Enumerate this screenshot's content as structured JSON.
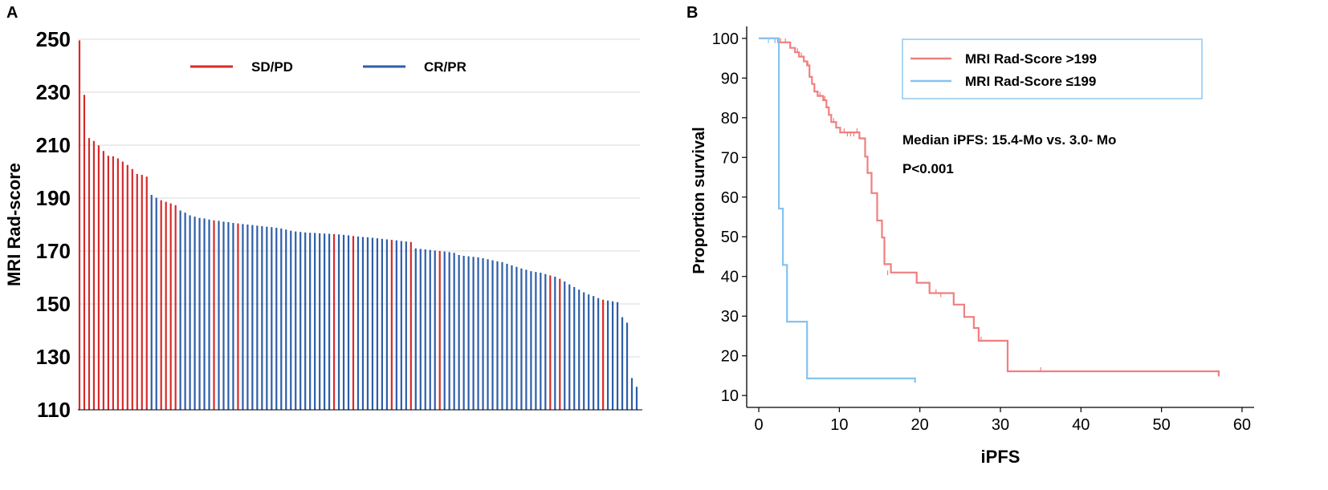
{
  "panels": {
    "a_label": "A",
    "b_label": "B"
  },
  "colors": {
    "sdpd": "#d62b2b",
    "crpr": "#2e5ea8",
    "high": "#f07f7f",
    "low": "#86c3ef",
    "grid": "#d9d9d9"
  },
  "chart_data": [
    {
      "type": "bar",
      "title": "",
      "xlabel": "",
      "ylabel": "MRI Rad-score",
      "ylim": [
        110,
        250
      ],
      "yticks": [
        110,
        130,
        150,
        170,
        190,
        210,
        230,
        250
      ],
      "legend": [
        "SD/PD",
        "CR/PR"
      ],
      "series": [
        {
          "name": "SD/PD",
          "color": "#d62b2b"
        },
        {
          "name": "CR/PR",
          "color": "#2e5ea8"
        }
      ],
      "values": [
        249.6,
        229.0,
        212.7,
        211.6,
        209.9,
        207.8,
        206.0,
        205.8,
        205.0,
        203.8,
        202.5,
        201.0,
        199.1,
        198.8,
        198.1,
        191.2,
        190.1,
        189.2,
        188.6,
        188.0,
        187.3,
        185.3,
        184.5,
        183.5,
        183.0,
        182.5,
        182.3,
        181.9,
        181.6,
        181.4,
        181.1,
        180.9,
        180.6,
        180.4,
        180.2,
        180.0,
        179.8,
        179.6,
        179.4,
        179.2,
        179.0,
        178.8,
        178.5,
        178.1,
        177.7,
        177.4,
        177.2,
        177.0,
        176.9,
        176.8,
        176.7,
        176.6,
        176.5,
        176.4,
        176.3,
        176.1,
        175.9,
        175.7,
        175.5,
        175.3,
        175.2,
        175.0,
        174.8,
        174.6,
        174.4,
        174.2,
        174.0,
        173.8,
        173.6,
        173.4,
        171.0,
        170.8,
        170.6,
        170.4,
        170.2,
        170.0,
        169.8,
        169.6,
        169.3,
        168.5,
        168.2,
        168.0,
        167.8,
        167.6,
        167.3,
        166.9,
        166.5,
        166.1,
        165.8,
        165.2,
        164.6,
        164.0,
        163.4,
        162.9,
        162.4,
        162.1,
        161.8,
        161.3,
        160.8,
        160.3,
        159.5,
        158.5,
        157.4,
        156.4,
        155.4,
        154.4,
        153.6,
        153.0,
        152.2,
        151.6,
        151.3,
        151.0,
        150.7,
        145.0,
        142.9,
        122.0,
        118.7
      ],
      "groups": "SSSSSSSSSSSSSSSCCSSSSCCCCCCCSCCCCSCCCCCCCCCCCCCCCCCCCSCCCSCCCCCCCSCCCSCCCCCSCCCCCCCCCCCCCCCCCCCCCCSCSCCCCCCCCSCCCCCCCC"
    },
    {
      "type": "line",
      "title": "",
      "xlabel": "iPFS",
      "ylabel": "Proportion survival",
      "xlim": [
        -1.5,
        61.5
      ],
      "ylim": [
        7,
        103
      ],
      "xticks": [
        0,
        10,
        20,
        30,
        40,
        50,
        60
      ],
      "yticks": [
        10,
        20,
        30,
        40,
        50,
        60,
        70,
        80,
        90,
        100
      ],
      "series": [
        {
          "name": "MRI Rad-Score >199",
          "color": "#f07f7f",
          "steps": [
            [
              0,
              100
            ],
            [
              2.4,
              100
            ],
            [
              2.4,
              99
            ],
            [
              3.9,
              99
            ],
            [
              3.9,
              97.6
            ],
            [
              4.5,
              97.6
            ],
            [
              4.5,
              96.5
            ],
            [
              5.0,
              96.5
            ],
            [
              5.0,
              95.4
            ],
            [
              5.6,
              95.4
            ],
            [
              5.6,
              94.2
            ],
            [
              6.0,
              94.2
            ],
            [
              6.0,
              93.2
            ],
            [
              6.3,
              93.2
            ],
            [
              6.3,
              90.3
            ],
            [
              6.6,
              90.3
            ],
            [
              6.6,
              88.5
            ],
            [
              6.9,
              88.5
            ],
            [
              6.9,
              86.6
            ],
            [
              7.3,
              86.6
            ],
            [
              7.3,
              85.5
            ],
            [
              8.0,
              85.5
            ],
            [
              8.0,
              84.4
            ],
            [
              8.4,
              84.4
            ],
            [
              8.4,
              82.6
            ],
            [
              8.7,
              82.6
            ],
            [
              8.7,
              80.7
            ],
            [
              9.0,
              80.7
            ],
            [
              9.0,
              78.9
            ],
            [
              9.6,
              78.9
            ],
            [
              9.6,
              77.5
            ],
            [
              10.1,
              77.5
            ],
            [
              10.1,
              76.3
            ],
            [
              12.5,
              76.3
            ],
            [
              12.5,
              74.8
            ],
            [
              13.2,
              74.8
            ],
            [
              13.2,
              70.2
            ],
            [
              13.5,
              70.2
            ],
            [
              13.5,
              66.1
            ],
            [
              14.0,
              66.1
            ],
            [
              14.0,
              61.0
            ],
            [
              14.7,
              61.0
            ],
            [
              14.7,
              54.1
            ],
            [
              15.3,
              54.1
            ],
            [
              15.3,
              49.8
            ],
            [
              15.6,
              49.8
            ],
            [
              15.6,
              43.1
            ],
            [
              16.4,
              43.1
            ],
            [
              16.4,
              41.0
            ],
            [
              19.6,
              41.0
            ],
            [
              19.6,
              38.4
            ],
            [
              21.2,
              38.4
            ],
            [
              21.2,
              35.8
            ],
            [
              24.2,
              35.8
            ],
            [
              24.2,
              32.9
            ],
            [
              25.5,
              32.9
            ],
            [
              25.5,
              29.8
            ],
            [
              26.7,
              29.8
            ],
            [
              26.7,
              27.0
            ],
            [
              27.3,
              27.0
            ],
            [
              27.3,
              23.8
            ],
            [
              30.9,
              23.8
            ],
            [
              30.9,
              16.1
            ],
            [
              57.1,
              16.1
            ],
            [
              57.1,
              14.8
            ]
          ],
          "censors": [
            [
              2.0,
              99
            ],
            [
              2.7,
              99
            ],
            [
              3.3,
              99
            ],
            [
              4.8,
              96.5
            ],
            [
              5.3,
              95.4
            ],
            [
              6.1,
              93.2
            ],
            [
              7.6,
              85.5
            ],
            [
              8.2,
              84.4
            ],
            [
              9.3,
              78.9
            ],
            [
              10.6,
              76.3
            ],
            [
              11.0,
              75.5
            ],
            [
              11.4,
              75.5
            ],
            [
              11.8,
              75.5
            ],
            [
              12.2,
              76.3
            ],
            [
              16.0,
              40.5
            ],
            [
              22.0,
              35.8
            ],
            [
              22.6,
              35.0
            ],
            [
              27.6,
              23.8
            ],
            [
              35.0,
              16.1
            ],
            [
              57.1,
              15.0
            ]
          ]
        },
        {
          "name": "MRI Rad-Score ≤199",
          "color": "#86c3ef",
          "steps": [
            [
              0,
              100
            ],
            [
              2.5,
              100
            ],
            [
              2.5,
              57.1
            ],
            [
              3.0,
              57.1
            ],
            [
              3.0,
              42.9
            ],
            [
              3.5,
              42.9
            ],
            [
              3.5,
              28.6
            ],
            [
              6.0,
              28.6
            ],
            [
              6.0,
              14.3
            ],
            [
              19.4,
              14.3
            ],
            [
              19.4,
              13.2
            ]
          ],
          "censors": [
            [
              1.2,
              99
            ],
            [
              2.0,
              99
            ],
            [
              19.4,
              13.5
            ]
          ]
        }
      ],
      "annotations": [
        "Median iPFS: 15.4-Mo vs. 3.0- Mo",
        "P<0.001"
      ]
    }
  ]
}
